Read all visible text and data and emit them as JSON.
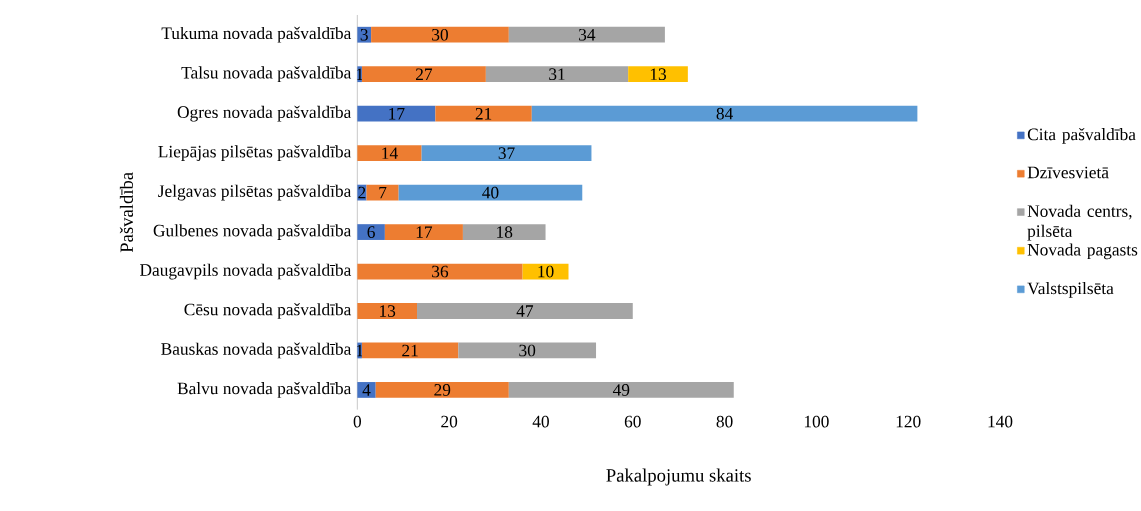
{
  "chart_data": {
    "type": "bar",
    "orientation": "horizontal",
    "stacked": true,
    "data_labels": true,
    "legend": "right",
    "grid": false,
    "xlabel": "Pakalpojumu skaits",
    "ylabel": "Pašvaldība",
    "categories": [
      "Tukuma novada pašvaldība",
      "Talsu novada pašvaldība",
      "Ogres novada pašvaldība",
      "Liepājas pilsētas pašvaldība",
      "Jelgavas pilsētas pašvaldība",
      "Gulbenes novada pašvaldība",
      "Daugavpils novada pašvaldība",
      "Cēsu novada pašvaldība",
      "Bauskas novada pašvaldība",
      "Balvu novada pašvaldība"
    ],
    "xlim": [
      0,
      140
    ],
    "xticks": [
      0,
      20,
      40,
      60,
      80,
      100,
      120,
      140
    ],
    "series": [
      {
        "name": "Cita pašvaldība",
        "color": "#4472c4",
        "values": [
          3,
          1,
          17,
          null,
          2,
          6,
          null,
          null,
          1,
          4
        ]
      },
      {
        "name": "Dzīvesvietā",
        "color": "#ed7d31",
        "values": [
          30,
          27,
          21,
          14,
          7,
          17,
          36,
          13,
          21,
          29
        ]
      },
      {
        "name": "Novada centrs, pilsēta",
        "color": "#a5a5a5",
        "values": [
          34,
          31,
          null,
          null,
          null,
          18,
          null,
          47,
          30,
          49
        ]
      },
      {
        "name": "Novada pagasts",
        "color": "#ffc000",
        "values": [
          null,
          13,
          null,
          null,
          null,
          null,
          10,
          null,
          null,
          null
        ]
      },
      {
        "name": "Valstspilsēta",
        "color": "#5b9bd5",
        "values": [
          null,
          null,
          84,
          37,
          40,
          null,
          null,
          null,
          null,
          null
        ]
      }
    ]
  }
}
